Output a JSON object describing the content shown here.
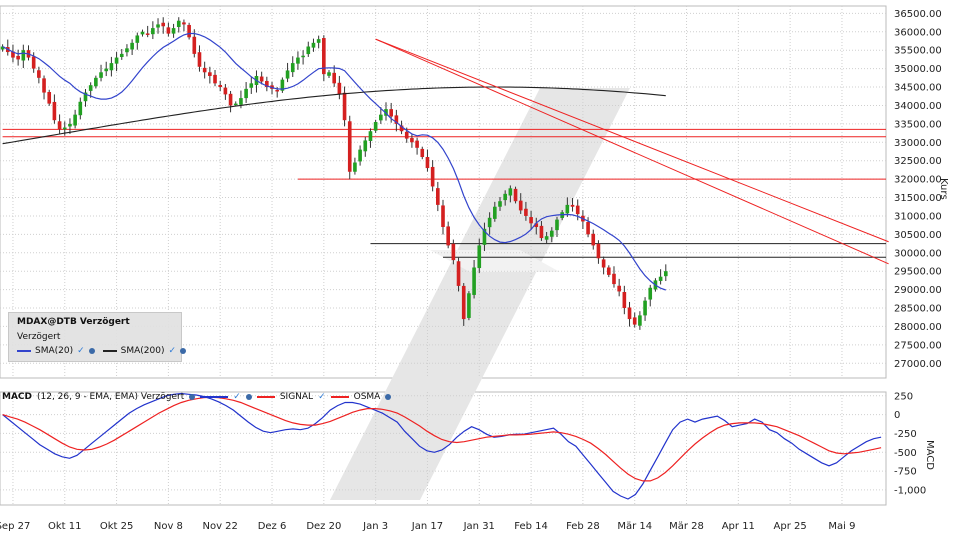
{
  "legend": {
    "title": "MDAX@DTB Verzögert",
    "subtitle": "Verzögert",
    "sma20": "SMA(20)",
    "sma200": "SMA(200)"
  },
  "macd_legend": {
    "name": "MACD",
    "params": "(12, 26, 9 - EMA, EMA) Verzögert",
    "signal": "SIGNAL",
    "osma": "OSMA"
  },
  "colors": {
    "up": "#22a022",
    "down": "#d42020",
    "sma20": "#3344cc",
    "sma200": "#222222",
    "trendline": "#ee2222",
    "macd": "#2233cc",
    "signal": "#ee2222",
    "watermark": "#e6e6e6"
  },
  "chart_data": [
    {
      "type": "candlestick",
      "ylabel": "Kurs",
      "ylim": [
        26600,
        36700
      ],
      "yticks": [
        "36500.00",
        "36000.00",
        "35500.00",
        "35000.00",
        "34500.00",
        "34000.00",
        "33500.00",
        "33000.00",
        "32500.00",
        "32000.00",
        "31500.00",
        "31000.00",
        "30500.00",
        "30000.00",
        "29500.00",
        "29000.00",
        "28500.00",
        "28000.00",
        "27500.00",
        "27000.00"
      ],
      "ytick_values": [
        36500,
        36000,
        35500,
        35000,
        34500,
        34000,
        33500,
        33000,
        32500,
        32000,
        31500,
        31000,
        30500,
        30000,
        29500,
        29000,
        28500,
        28000,
        27500,
        27000
      ],
      "xticks": [
        "Sep 27",
        "Okt 11",
        "Okt 25",
        "Nov 8",
        "Nov 22",
        "Dez 6",
        "Dez 20",
        "Jan 3",
        "Jan 17",
        "Jan 31",
        "Feb 14",
        "Feb 28",
        "Mär 14",
        "Mär 28",
        "Apr 11",
        "Apr 25",
        "Mai 9"
      ],
      "xtick_index": [
        2,
        12,
        22,
        32,
        42,
        52,
        62,
        72,
        82,
        92,
        102,
        112,
        122,
        132,
        142,
        152,
        162
      ],
      "close_path": [
        35600,
        35450,
        35300,
        35250,
        35500,
        35300,
        35000,
        34750,
        34350,
        34050,
        33600,
        33350,
        33400,
        33500,
        33750,
        34100,
        34350,
        34550,
        34750,
        34900,
        35000,
        35150,
        35300,
        35400,
        35550,
        35700,
        35900,
        36000,
        35950,
        36100,
        36200,
        36150,
        35950,
        36100,
        36300,
        36200,
        35850,
        35400,
        35050,
        34900,
        34800,
        34600,
        34500,
        34300,
        34000,
        34050,
        34200,
        34450,
        34600,
        34800,
        34650,
        34500,
        34450,
        34400,
        34700,
        34950,
        35150,
        35300,
        35350,
        35600,
        35700,
        35800,
        34850,
        34900,
        34600,
        34300,
        33600,
        32200,
        32450,
        32800,
        33050,
        33300,
        33550,
        33750,
        33900,
        33700,
        33500,
        33300,
        33100,
        33000,
        32850,
        32600,
        32300,
        31800,
        31300,
        30700,
        30200,
        29800,
        29100,
        28200,
        28900,
        29600,
        30200,
        30650,
        30950,
        31250,
        31400,
        31600,
        31750,
        31400,
        31150,
        31000,
        30800,
        30700,
        30400,
        30450,
        30600,
        30900,
        31100,
        31300,
        31250,
        31050,
        30850,
        30500,
        30200,
        29850,
        29600,
        29400,
        29150,
        28950,
        28500,
        28200,
        28050,
        28300,
        28700,
        29050,
        29250,
        29350,
        29500
      ],
      "sma20_note": "SMA(20) overlay",
      "sma200_note": "SMA(200) overlay",
      "horizontal_lines": [
        33350,
        33150,
        32000,
        30250,
        29880
      ],
      "trendlines": [
        {
          "from": [
            72,
            35800
          ],
          "to": [
            171,
            30300
          ]
        },
        {
          "from": [
            72,
            35800
          ],
          "to": [
            171,
            29700
          ]
        }
      ]
    },
    {
      "type": "line",
      "ylabel": "MACD",
      "ylim": [
        -1200,
        300
      ],
      "yticks": [
        "250",
        "0",
        "-250",
        "-500",
        "-750",
        "-1,000"
      ],
      "ytick_values": [
        250,
        0,
        -250,
        -500,
        -750,
        -1000
      ],
      "series": [
        {
          "name": "MACD",
          "values": [
            0,
            -80,
            -160,
            -240,
            -320,
            -400,
            -460,
            -520,
            -560,
            -580,
            -540,
            -460,
            -380,
            -300,
            -220,
            -140,
            -60,
            20,
            80,
            130,
            170,
            210,
            250,
            270,
            280,
            270,
            260,
            240,
            210,
            170,
            120,
            60,
            -20,
            -100,
            -170,
            -220,
            -240,
            -220,
            -200,
            -190,
            -200,
            -180,
            -120,
            -40,
            60,
            120,
            160,
            160,
            140,
            100,
            60,
            20,
            -40,
            -100,
            -220,
            -320,
            -420,
            -480,
            -500,
            -470,
            -400,
            -300,
            -220,
            -160,
            -200,
            -260,
            -300,
            -290,
            -270,
            -260,
            -260,
            -240,
            -220,
            -200,
            -180,
            -260,
            -360,
            -420,
            -540,
            -660,
            -780,
            -900,
            -1020,
            -1080,
            -1120,
            -1060,
            -920,
            -740,
            -560,
            -380,
            -200,
            -100,
            -60,
            -100,
            -60,
            -40,
            -20,
            -80,
            -160,
            -140,
            -120,
            -60,
            -100,
            -200,
            -240,
            -320,
            -380,
            -460,
            -520,
            -580,
            -640,
            -680,
            -640,
            -560,
            -480,
            -420,
            -360,
            -320,
            -300
          ]
        },
        {
          "name": "SIGNAL",
          "values": [
            0,
            -30,
            -60,
            -100,
            -150,
            -200,
            -260,
            -320,
            -380,
            -430,
            -460,
            -470,
            -460,
            -430,
            -390,
            -340,
            -280,
            -220,
            -160,
            -100,
            -40,
            20,
            70,
            120,
            160,
            190,
            210,
            225,
            230,
            225,
            210,
            190,
            160,
            120,
            80,
            40,
            0,
            -40,
            -80,
            -110,
            -130,
            -140,
            -140,
            -120,
            -90,
            -50,
            -10,
            30,
            60,
            80,
            80,
            70,
            50,
            20,
            -30,
            -90,
            -150,
            -220,
            -280,
            -330,
            -360,
            -370,
            -360,
            -340,
            -320,
            -300,
            -290,
            -280,
            -270,
            -270,
            -265,
            -260,
            -250,
            -240,
            -230,
            -240,
            -260,
            -290,
            -330,
            -380,
            -450,
            -530,
            -620,
            -710,
            -790,
            -850,
            -880,
            -880,
            -840,
            -770,
            -680,
            -580,
            -480,
            -390,
            -310,
            -240,
            -180,
            -140,
            -120,
            -110,
            -110,
            -110,
            -120,
            -140,
            -160,
            -200,
            -240,
            -280,
            -330,
            -380,
            -430,
            -480,
            -510,
            -520,
            -510,
            -500,
            -480,
            -460,
            -440
          ]
        }
      ],
      "watermark_signal_label": "SIGNAL",
      "watermark_osma_label": "OSMA"
    }
  ]
}
